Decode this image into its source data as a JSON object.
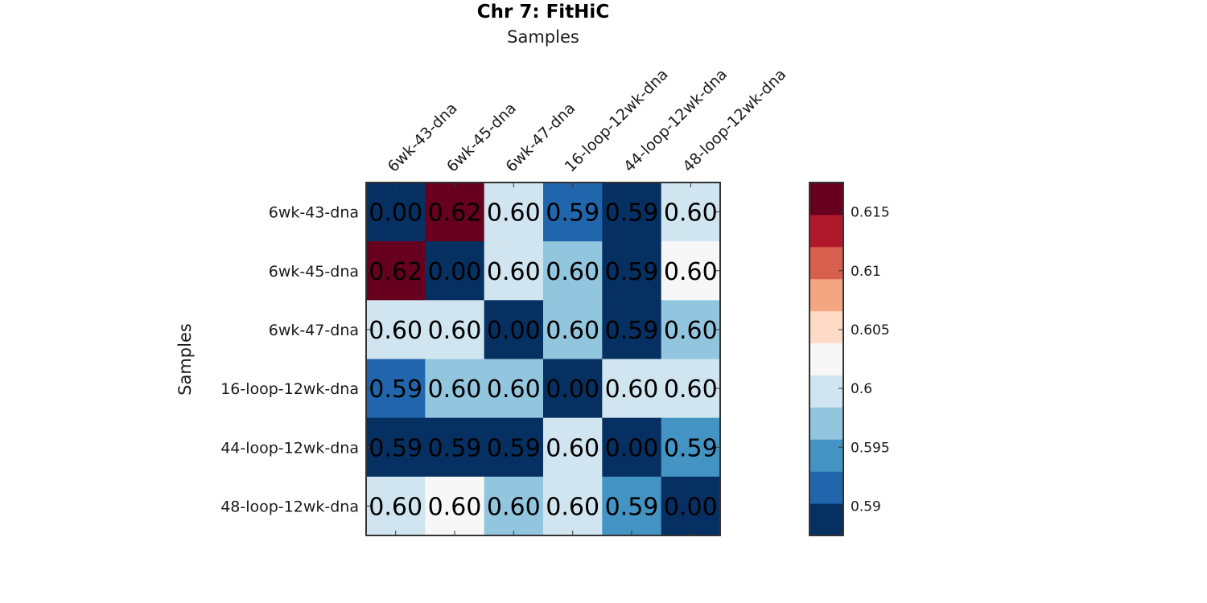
{
  "chart_data": {
    "type": "heatmap",
    "title": "Chr 7: FitHiC",
    "xlabel": "Samples",
    "ylabel": "Samples",
    "x_categories": [
      "6wk-43-dna",
      "6wk-45-dna",
      "6wk-47-dna",
      "16-loop-12wk-dna",
      "44-loop-12wk-dna",
      "48-loop-12wk-dna"
    ],
    "y_categories": [
      "6wk-43-dna",
      "6wk-45-dna",
      "6wk-47-dna",
      "16-loop-12wk-dna",
      "44-loop-12wk-dna",
      "48-loop-12wk-dna"
    ],
    "cell_labels": [
      [
        "0.00",
        "0.62",
        "0.60",
        "0.59",
        "0.59",
        "0.60"
      ],
      [
        "0.62",
        "0.00",
        "0.60",
        "0.60",
        "0.59",
        "0.60"
      ],
      [
        "0.60",
        "0.60",
        "0.00",
        "0.60",
        "0.59",
        "0.60"
      ],
      [
        "0.59",
        "0.60",
        "0.60",
        "0.00",
        "0.60",
        "0.60"
      ],
      [
        "0.59",
        "0.59",
        "0.59",
        "0.60",
        "0.00",
        "0.59"
      ],
      [
        "0.60",
        "0.60",
        "0.60",
        "0.60",
        "0.59",
        "0.00"
      ]
    ],
    "values": [
      [
        0.0,
        0.619,
        0.6,
        0.591,
        0.588,
        0.6
      ],
      [
        0.619,
        0.0,
        0.6,
        0.597,
        0.588,
        0.602
      ],
      [
        0.6,
        0.6,
        0.0,
        0.597,
        0.588,
        0.597
      ],
      [
        0.591,
        0.597,
        0.597,
        0.0,
        0.6,
        0.6
      ],
      [
        0.588,
        0.588,
        0.588,
        0.6,
        0.0,
        0.594
      ],
      [
        0.6,
        0.602,
        0.597,
        0.6,
        0.594,
        0.0
      ]
    ],
    "colorbar": {
      "range": [
        0.5875,
        0.6175
      ],
      "ticks": [
        0.59,
        0.595,
        0.6,
        0.605,
        0.61,
        0.615
      ],
      "tick_labels": [
        "0.59",
        "0.595",
        "0.6",
        "0.605",
        "0.61",
        "0.615"
      ],
      "colors_low_to_high": [
        "#053061",
        "#2166ac",
        "#4393c3",
        "#92c5de",
        "#d1e5f0",
        "#f7f7f7",
        "#fddbc7",
        "#f4a582",
        "#d6604d",
        "#b2182b",
        "#67001f"
      ]
    },
    "grid": false,
    "legend": "colorbar-right"
  }
}
